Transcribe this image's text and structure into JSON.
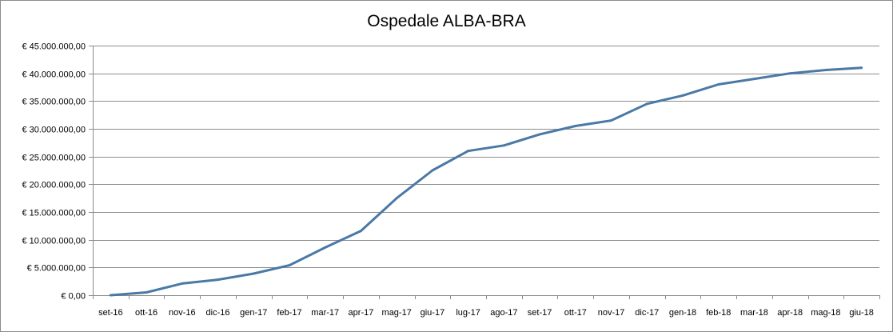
{
  "chart_data": {
    "type": "line",
    "title": "Ospedale ALBA-BRA",
    "xlabel": "",
    "ylabel": "",
    "categories": [
      "set-16",
      "ott-16",
      "nov-16",
      "dic-16",
      "gen-17",
      "feb-17",
      "mar-17",
      "apr-17",
      "mag-17",
      "giu-17",
      "lug-17",
      "ago-17",
      "set-17",
      "ott-17",
      "nov-17",
      "dic-17",
      "gen-18",
      "feb-18",
      "mar-18",
      "apr-18",
      "mag-18",
      "giu-18"
    ],
    "series": [
      {
        "values": [
          0,
          500000,
          2100000,
          2800000,
          3900000,
          5400000,
          8600000,
          11600000,
          17500000,
          22500000,
          26000000,
          27000000,
          29000000,
          30500000,
          31500000,
          34500000,
          36000000,
          38000000,
          39000000,
          40000000,
          40600000,
          41000000
        ],
        "color": "#4a79a6"
      }
    ],
    "ylim": [
      0,
      45000000
    ],
    "yticks": [
      0,
      5000000,
      10000000,
      15000000,
      20000000,
      25000000,
      30000000,
      35000000,
      40000000,
      45000000
    ],
    "ytick_labels": [
      "€ 0,00",
      "€ 5.000.000,00",
      "€ 10.000.000,00",
      "€ 15.000.000,00",
      "€ 20.000.000,00",
      "€ 25.000.000,00",
      "€ 30.000.000,00",
      "€ 35.000.000,00",
      "€ 40.000.000,00",
      "€ 45.000.000,00"
    ],
    "grid": true,
    "legend": "none"
  }
}
